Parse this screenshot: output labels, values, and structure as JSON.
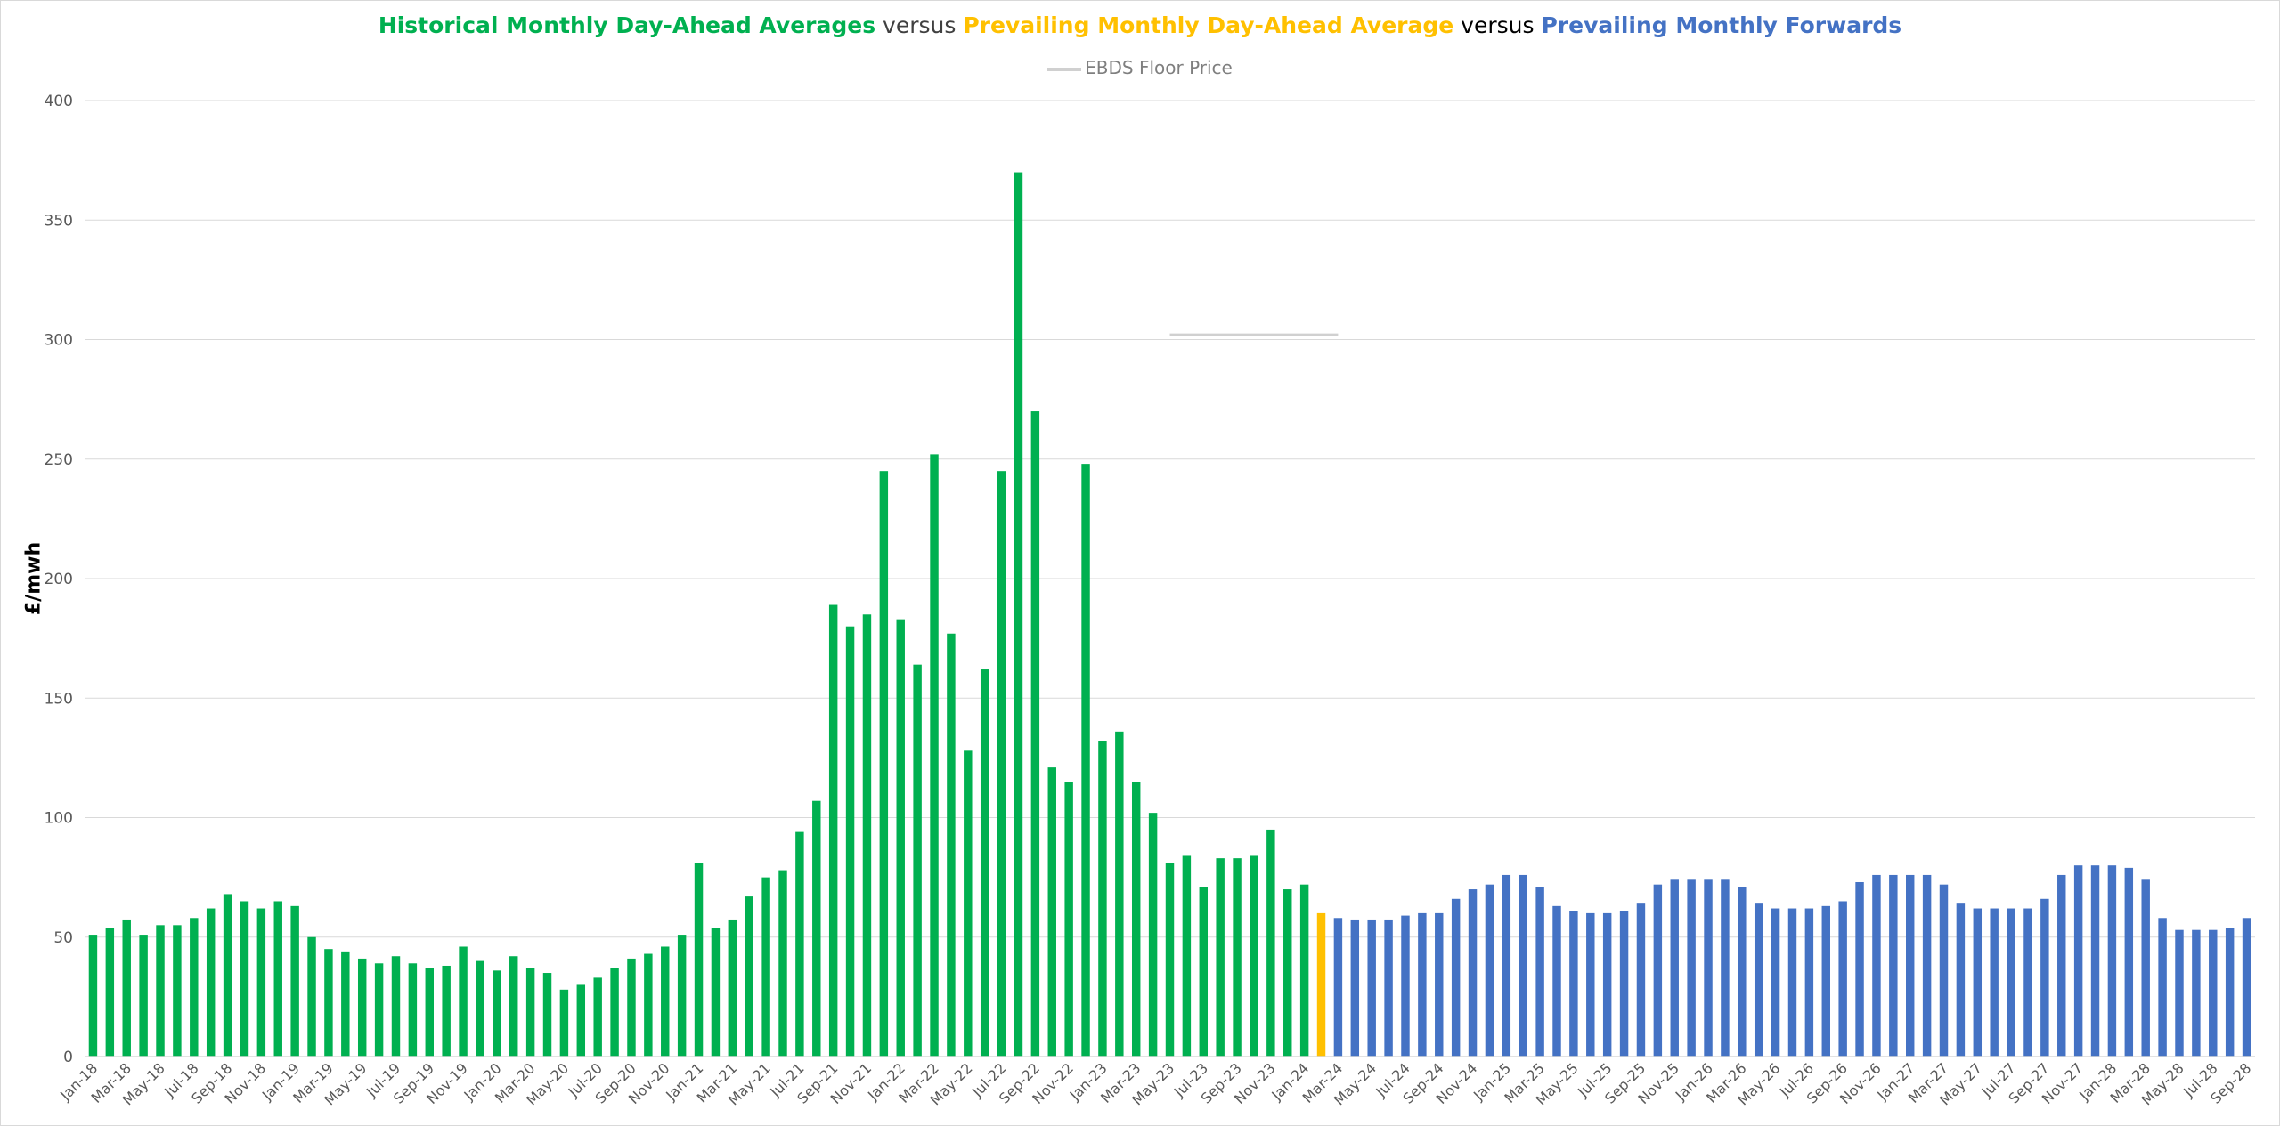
{
  "chart_data": {
    "type": "bar",
    "title_parts": [
      {
        "text": "Historical Monthly Day-Ahead Averages",
        "color": "#00b050",
        "bold": true
      },
      {
        "text": " versus ",
        "color": "#404040",
        "bold": false
      },
      {
        "text": "Prevailing Monthly Day-Ahead Average",
        "color": "#ffc000",
        "bold": true
      },
      {
        "text": " versus ",
        "color": "#000000",
        "bold": false
      },
      {
        "text": "Prevailing Monthly Forwards",
        "color": "#4472c4",
        "bold": true
      }
    ],
    "legend": {
      "label": "EBDS Floor Price",
      "color": "#d0d0d0",
      "placement": "top"
    },
    "ylabel": "£/mwh",
    "xlabel": "",
    "ylim": [
      0,
      400
    ],
    "yticks": [
      0,
      50,
      100,
      150,
      200,
      250,
      300,
      350,
      400
    ],
    "grid": true,
    "x_start": "Jan-18",
    "x_tick_every": 2,
    "colors": {
      "historical": "#00b050",
      "prevailing": "#ffc000",
      "forwards": "#4472c4",
      "grid": "#d9d9d9",
      "axis": "#d9d9d9"
    },
    "series": [
      {
        "key": "historical",
        "values": [
          51,
          54,
          57,
          51,
          55,
          55,
          58,
          62,
          68,
          65,
          62,
          65,
          63,
          50,
          45,
          44,
          41,
          39,
          42,
          39,
          37,
          38,
          46,
          40,
          36,
          42,
          37,
          35,
          28,
          30,
          33,
          37,
          41,
          43,
          46,
          51,
          81,
          54,
          57,
          67,
          75,
          78,
          94,
          107,
          189,
          180,
          185,
          245,
          183,
          164,
          252,
          177,
          128,
          162,
          245,
          370,
          270,
          121,
          115,
          248,
          132,
          136,
          115,
          102,
          81,
          84,
          71,
          83,
          83,
          84,
          95,
          70,
          72
        ]
      },
      {
        "key": "prevailing",
        "values": [
          60
        ]
      },
      {
        "key": "forwards",
        "values": [
          58,
          57,
          57,
          57,
          59,
          60,
          60,
          66,
          70,
          72,
          76,
          76,
          71,
          63,
          61,
          60,
          60,
          61,
          64,
          72,
          74,
          74,
          74,
          74,
          71,
          64,
          62,
          62,
          62,
          63,
          65,
          73,
          76,
          76,
          76,
          76,
          72,
          64,
          62,
          62,
          62,
          62,
          66,
          76,
          80,
          80,
          80,
          79,
          74,
          58,
          53,
          53,
          53,
          54,
          58
        ]
      }
    ],
    "floor_price": {
      "name": "EBDS Floor Price",
      "value": 302,
      "from_index": 64,
      "to_index": 74
    }
  }
}
